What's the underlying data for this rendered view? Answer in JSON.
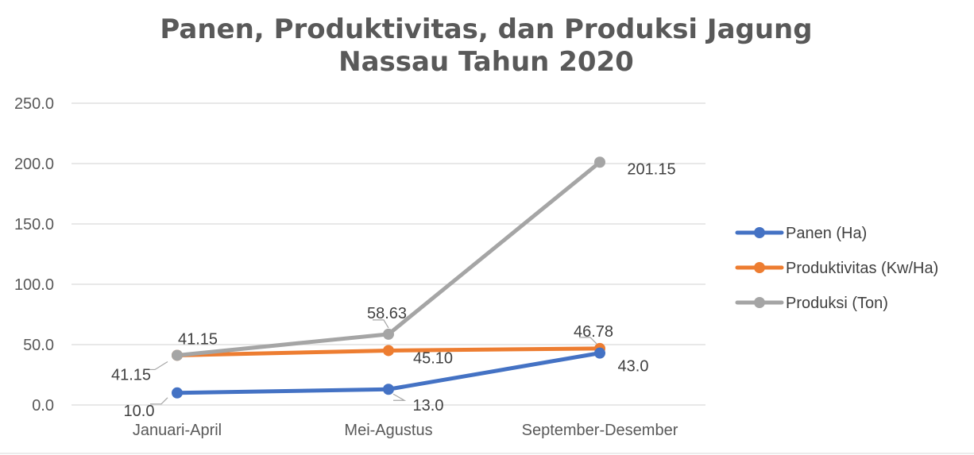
{
  "chart_data": {
    "type": "line",
    "title": "Panen, Produktivitas, dan Produksi Jagung Nassau Tahun 2020",
    "title_lines": [
      "Panen, Produktivitas, dan Produksi Jagung",
      "Nassau Tahun 2020"
    ],
    "categories": [
      "Januari-April",
      "Mei-Agustus",
      "September-Desember"
    ],
    "ylim": [
      0,
      250
    ],
    "yticks": [
      0,
      50,
      100,
      150,
      200,
      250
    ],
    "ytick_labels": [
      "0.0",
      "50.0",
      "100.0",
      "150.0",
      "200.0",
      "250.0"
    ],
    "grid": true,
    "legend_position": "right",
    "series": [
      {
        "name": "Panen (Ha)",
        "color": "#4472C4",
        "values": [
          10.0,
          13.0,
          43.0
        ],
        "labels": [
          "10.0",
          "13.0",
          "43.0"
        ]
      },
      {
        "name": "Produktivitas (Kw/Ha)",
        "color": "#ED7D31",
        "values": [
          41.15,
          45.1,
          46.78
        ],
        "labels": [
          "41.15",
          "45.10",
          "46.78"
        ]
      },
      {
        "name": "Produksi (Ton)",
        "color": "#A5A5A5",
        "values": [
          41.15,
          58.63,
          201.15
        ],
        "labels": [
          "41.15",
          "58.63",
          "201.15"
        ]
      }
    ]
  }
}
